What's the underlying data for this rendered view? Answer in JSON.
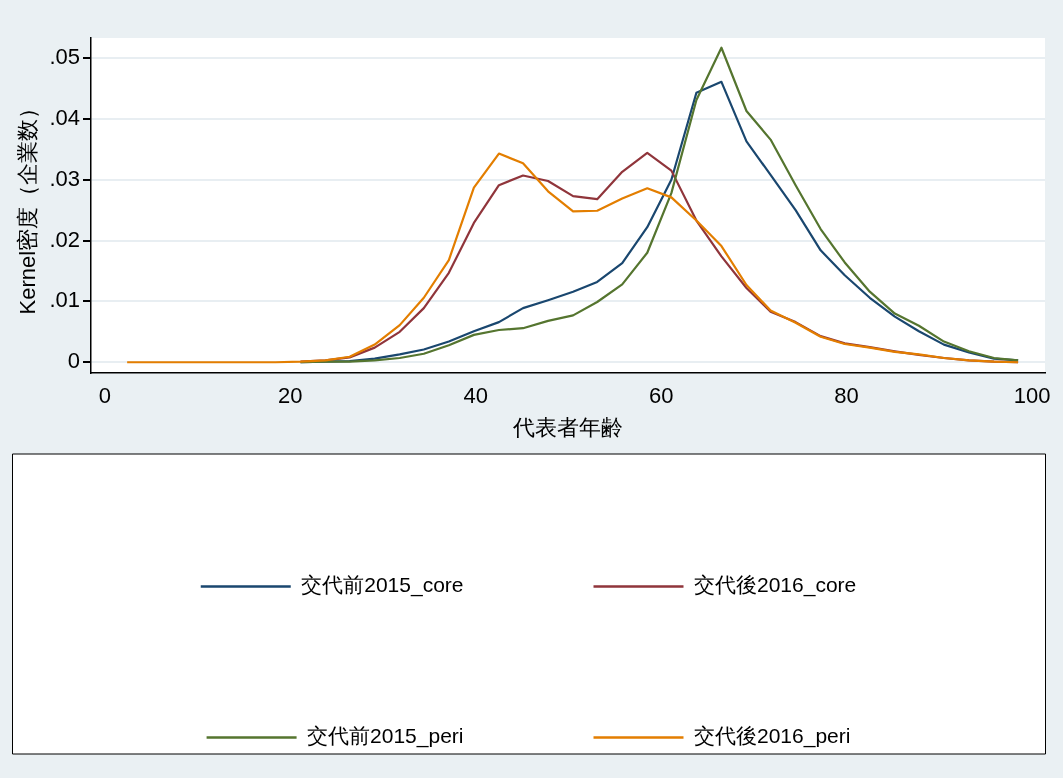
{
  "chart_data": {
    "type": "line",
    "xlabel": "代表者年齢",
    "ylabel": "Kernel密度（企業数）",
    "x": [
      2.4,
      5.1,
      7.7,
      10.4,
      13.1,
      15.8,
      18.4,
      21.1,
      23.8,
      26.4,
      29.1,
      31.8,
      34.4,
      37.1,
      39.8,
      42.5,
      45.1,
      47.8,
      50.5,
      53.1,
      55.8,
      58.5,
      61.1,
      63.8,
      66.5,
      69.2,
      71.8,
      74.5,
      77.2,
      79.8,
      82.5,
      85.2,
      87.8,
      90.5,
      93.2,
      95.9,
      98.5
    ],
    "series": [
      {
        "name": "交代前2015_core",
        "color": "#1a476f",
        "values": [
          null,
          null,
          null,
          null,
          null,
          null,
          null,
          0,
          0.0001,
          0.0002,
          0.0006,
          0.0013,
          0.0021,
          0.0034,
          0.0051,
          0.0066,
          0.0089,
          0.0102,
          0.0116,
          0.0132,
          0.0163,
          0.0222,
          0.03,
          0.0443,
          0.0461,
          0.0363,
          0.0308,
          0.025,
          0.0184,
          0.0143,
          0.0106,
          0.0075,
          0.0051,
          0.0029,
          0.0016,
          0.0006,
          0.0003
        ]
      },
      {
        "name": "交代後2016_core",
        "color": "#90353b",
        "values": [
          null,
          null,
          null,
          null,
          null,
          null,
          null,
          0.0001,
          0.0003,
          0.0008,
          0.0024,
          0.005,
          0.0089,
          0.0147,
          0.0229,
          0.0291,
          0.0307,
          0.0298,
          0.0273,
          0.0268,
          0.0313,
          0.0344,
          0.0315,
          0.0233,
          0.0174,
          0.0122,
          0.0083,
          0.0066,
          0.0043,
          0.0031,
          0.0025,
          0.0018,
          0.0012,
          0.0007,
          0.0003,
          0.0001,
          0
        ]
      },
      {
        "name": "交代前2015_peri",
        "color": "#55752f",
        "values": [
          null,
          null,
          null,
          null,
          null,
          null,
          null,
          0,
          0.0001,
          0.0001,
          0.0003,
          0.0007,
          0.0014,
          0.0028,
          0.0045,
          0.0053,
          0.0056,
          0.0068,
          0.0077,
          0.0099,
          0.0128,
          0.018,
          0.0278,
          0.0431,
          0.0517,
          0.0413,
          0.0366,
          0.0291,
          0.0219,
          0.0164,
          0.0116,
          0.008,
          0.006,
          0.0034,
          0.0018,
          0.0007,
          0.0003
        ]
      },
      {
        "name": "交代後2016_peri",
        "color": "#e37e00",
        "values": [
          0,
          0,
          0,
          0,
          0,
          0,
          0,
          0.0001,
          0.0003,
          0.0009,
          0.0029,
          0.0061,
          0.0106,
          0.0168,
          0.0287,
          0.0343,
          0.0327,
          0.0281,
          0.0248,
          0.0249,
          0.0269,
          0.0286,
          0.0271,
          0.0233,
          0.0191,
          0.0127,
          0.0085,
          0.0065,
          0.0042,
          0.003,
          0.0024,
          0.0017,
          0.0013,
          0.0007,
          0.0003,
          0.0001,
          0
        ]
      }
    ],
    "xlim": [
      -1.5,
      101.4
    ],
    "xticks": [
      0,
      20,
      40,
      60,
      80,
      100
    ],
    "ylim": [
      -0.0018,
      0.0533
    ],
    "yticks": [
      {
        "value": 0,
        "label": "0"
      },
      {
        "value": 0.01,
        "label": ".01"
      },
      {
        "value": 0.02,
        "label": ".02"
      },
      {
        "value": 0.03,
        "label": ".03"
      },
      {
        "value": 0.04,
        "label": ".04"
      },
      {
        "value": 0.05,
        "label": ".05"
      }
    ],
    "grid": "y",
    "legend": "bottom",
    "marker": "none",
    "line_style": "solid"
  }
}
